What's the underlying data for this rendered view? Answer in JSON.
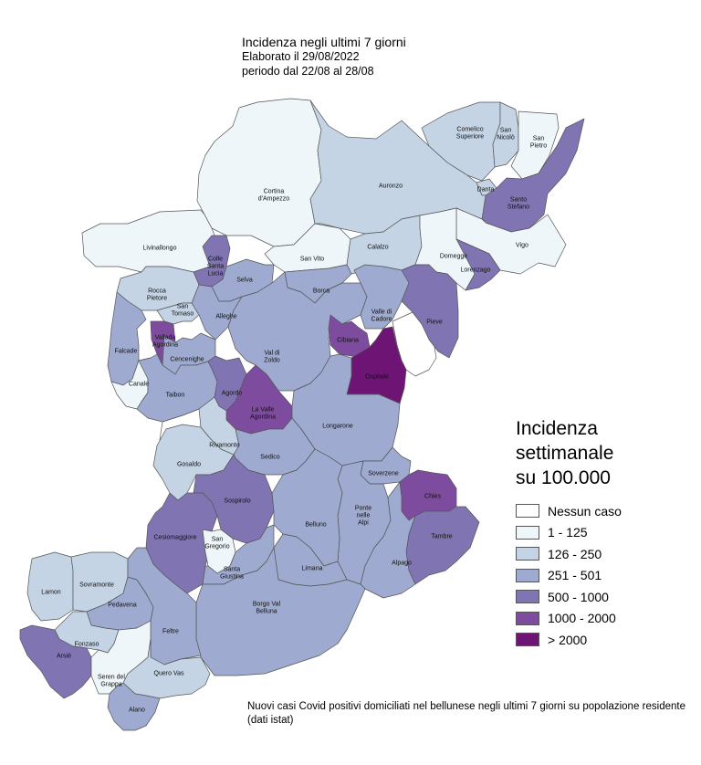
{
  "header": {
    "title": "Incidenza negli ultimi 7 giorni",
    "elaborated": "Elaborato il  29/08/2022",
    "period": "periodo dal 22/08 al 28/08"
  },
  "legend": {
    "title_lines": [
      "Incidenza",
      "settimanale",
      "su 100.000"
    ],
    "items": [
      {
        "label": "Nessun caso",
        "color": "#ffffff"
      },
      {
        "label": "1 - 125",
        "color": "#eef6f9"
      },
      {
        "label": "126 - 250",
        "color": "#c4d4e5"
      },
      {
        "label": "251 - 501",
        "color": "#9eaacf"
      },
      {
        "label": "500 - 1000",
        "color": "#8074b3"
      },
      {
        "label": "1000 - 2000",
        "color": "#7e4c9e"
      },
      {
        "label": "> 2000",
        "color": "#6e1475"
      }
    ]
  },
  "footnote": "Nuovi casi Covid positivi domiciliati nel bellunese negli ultimi 7 giorni su popolazione residente (dati istat)",
  "municipalities": [
    {
      "name": "Comelico Superiore",
      "lines": [
        "Comelico",
        "Superiore"
      ],
      "class": 2
    },
    {
      "name": "San Nicolò",
      "lines": [
        "San",
        "Nicolò"
      ],
      "class": 2
    },
    {
      "name": "San Pietro",
      "lines": [
        "San",
        "Pietro"
      ],
      "class": 1
    },
    {
      "name": "Danta",
      "lines": [
        "Danta"
      ],
      "class": 2
    },
    {
      "name": "Santo Stefano",
      "lines": [
        "Santo",
        "Stefano"
      ],
      "class": 4
    },
    {
      "name": "Cortina d'Ampezzo",
      "lines": [
        "Cortina",
        "d'Ampezzo"
      ],
      "class": 1
    },
    {
      "name": "Auronzo",
      "lines": [
        "Auronzo"
      ],
      "class": 2
    },
    {
      "name": "Vigo",
      "lines": [
        "Vigo"
      ],
      "class": 1
    },
    {
      "name": "Livinallongo",
      "lines": [
        "Livinallongo"
      ],
      "class": 1
    },
    {
      "name": "Colle Santa Lucia",
      "lines": [
        "Colle",
        "Santa",
        "Lucia"
      ],
      "class": 4
    },
    {
      "name": "San Vito",
      "lines": [
        "San Vito"
      ],
      "class": 1
    },
    {
      "name": "Calalzo",
      "lines": [
        "Calalzo"
      ],
      "class": 2
    },
    {
      "name": "Domegge",
      "lines": [
        "Domegge"
      ],
      "class": 1
    },
    {
      "name": "Lorenzago",
      "lines": [
        "Lorenzago"
      ],
      "class": 4
    },
    {
      "name": "Rocca Pietore",
      "lines": [
        "Rocca",
        "Pietore"
      ],
      "class": 2
    },
    {
      "name": "Selva",
      "lines": [
        "Selva"
      ],
      "class": 3
    },
    {
      "name": "Borca",
      "lines": [
        "Borca"
      ],
      "class": 3
    },
    {
      "name": "San Tomaso",
      "lines": [
        "San",
        "Tomaso"
      ],
      "class": 2
    },
    {
      "name": "Alleghe",
      "lines": [
        "Alleghe"
      ],
      "class": 3
    },
    {
      "name": "Valle di Cadore",
      "lines": [
        "Valle di",
        "Cadore"
      ],
      "class": 3
    },
    {
      "name": "Pieve",
      "lines": [
        "Pieve"
      ],
      "class": 4
    },
    {
      "name": "Falcade",
      "lines": [
        "Falcade"
      ],
      "class": 3
    },
    {
      "name": "Vallada Agordina",
      "lines": [
        "Vallada",
        "Agordina"
      ],
      "class": 5
    },
    {
      "name": "Cencenighe",
      "lines": [
        "Cencenighe"
      ],
      "class": 3
    },
    {
      "name": "Val di Zoldo",
      "lines": [
        "Val di",
        "Zoldo"
      ],
      "class": 3
    },
    {
      "name": "Cibiana",
      "lines": [
        "Cibiana"
      ],
      "class": 5
    },
    {
      "name": "Ospitale",
      "lines": [
        "Ospitale"
      ],
      "class": 6
    },
    {
      "name": "Canale",
      "lines": [
        "Canale"
      ],
      "class": 1
    },
    {
      "name": "Agordo",
      "lines": [
        "Agordo"
      ],
      "class": 4
    },
    {
      "name": "Taibon",
      "lines": [
        "Taibon"
      ],
      "class": 3
    },
    {
      "name": "La Valle Agordina",
      "lines": [
        "La Valle",
        "Agordina"
      ],
      "class": 5
    },
    {
      "name": "Longarone",
      "lines": [
        "Longarone"
      ],
      "class": 3
    },
    {
      "name": "Rivamonte",
      "lines": [
        "Rivamonte"
      ],
      "class": 2
    },
    {
      "name": "Gosaldo",
      "lines": [
        "Gosaldo"
      ],
      "class": 2
    },
    {
      "name": "Sedico",
      "lines": [
        "Sedico"
      ],
      "class": 3
    },
    {
      "name": "Soverzene",
      "lines": [
        "Soverzene"
      ],
      "class": 3
    },
    {
      "name": "Sospirolo",
      "lines": [
        "Sospirolo"
      ],
      "class": 4
    },
    {
      "name": "Ponte nelle Alpi",
      "lines": [
        "Ponte",
        "nelle",
        "Alpi"
      ],
      "class": 3
    },
    {
      "name": "Chies",
      "lines": [
        "Chies"
      ],
      "class": 5
    },
    {
      "name": "Belluno",
      "lines": [
        "Belluno"
      ],
      "class": 3
    },
    {
      "name": "Cesiomaggiore",
      "lines": [
        "Cesiomaggiore"
      ],
      "class": 4
    },
    {
      "name": "San Gregorio",
      "lines": [
        "San",
        "Gregorio"
      ],
      "class": 1
    },
    {
      "name": "Tambre",
      "lines": [
        "Tambre"
      ],
      "class": 4
    },
    {
      "name": "Santa Giustina",
      "lines": [
        "Santa",
        "Giustina"
      ],
      "class": 3
    },
    {
      "name": "Limana",
      "lines": [
        "Limana"
      ],
      "class": 3
    },
    {
      "name": "Alpago",
      "lines": [
        "Alpago"
      ],
      "class": 3
    },
    {
      "name": "Lamon",
      "lines": [
        "Lamon"
      ],
      "class": 2
    },
    {
      "name": "Sovramonte",
      "lines": [
        "Sovramonte"
      ],
      "class": 2
    },
    {
      "name": "Pedavena",
      "lines": [
        "Pedavena"
      ],
      "class": 3
    },
    {
      "name": "Borgo Val Belluna",
      "lines": [
        "Borgo Val",
        "Belluna"
      ],
      "class": 3
    },
    {
      "name": "Feltre",
      "lines": [
        "Feltre"
      ],
      "class": 3
    },
    {
      "name": "Fonzaso",
      "lines": [
        "Fonzaso"
      ],
      "class": 2
    },
    {
      "name": "Arsiè",
      "lines": [
        "Arsiè"
      ],
      "class": 4
    },
    {
      "name": "Seren del Grappa",
      "lines": [
        "Seren del",
        "Grappa"
      ],
      "class": 1
    },
    {
      "name": "Quero Vas",
      "lines": [
        "Quero Vas"
      ],
      "class": 2
    },
    {
      "name": "Alano",
      "lines": [
        "Alano"
      ],
      "class": 3
    }
  ],
  "no_case_areas": 6
}
